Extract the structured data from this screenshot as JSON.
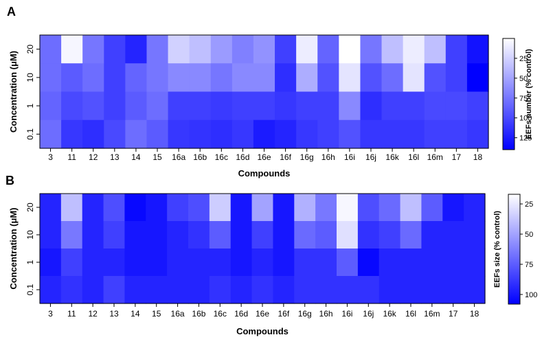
{
  "chart_data": [
    {
      "type": "heatmap",
      "panel": "A",
      "title": "",
      "xlabel": "Compounds",
      "ylabel": "Concentration (μM)",
      "x_categories": [
        "3",
        "11",
        "12",
        "13",
        "14",
        "15",
        "16a",
        "16b",
        "16c",
        "16d",
        "16e",
        "16f",
        "16g",
        "16h",
        "16i",
        "16j",
        "16k",
        "16l",
        "16m",
        "17",
        "18"
      ],
      "y_categories": [
        "20",
        "10",
        "1",
        "0.1"
      ],
      "values": [
        [
          80,
          5,
          75,
          105,
          120,
          75,
          25,
          35,
          55,
          70,
          60,
          105,
          10,
          85,
          0,
          75,
          35,
          10,
          35,
          105,
          130
        ],
        [
          80,
          90,
          80,
          105,
          85,
          75,
          65,
          65,
          75,
          65,
          65,
          115,
          45,
          95,
          15,
          95,
          80,
          15,
          95,
          105,
          140
        ],
        [
          85,
          100,
          95,
          105,
          90,
          80,
          105,
          105,
          108,
          105,
          105,
          110,
          105,
          105,
          65,
          115,
          105,
          105,
          100,
          100,
          105
        ],
        [
          80,
          110,
          115,
          100,
          80,
          90,
          110,
          112,
          115,
          110,
          125,
          120,
          110,
          105,
          95,
          110,
          110,
          110,
          105,
          105,
          110
        ]
      ],
      "colorbar": {
        "label": "EEFs number (% control)",
        "ticks": [
          "25",
          "50",
          "75",
          "100",
          "125"
        ],
        "range": [
          0,
          140
        ]
      },
      "color_low": "#FFFFFF",
      "color_high": "#0000FF"
    },
    {
      "type": "heatmap",
      "panel": "B",
      "title": "",
      "xlabel": "Compounds",
      "ylabel": "Concentration (μM)",
      "x_categories": [
        "3",
        "11",
        "12",
        "13",
        "14",
        "15",
        "16a",
        "16b",
        "16c",
        "16d",
        "16e",
        "16f",
        "16g",
        "16h",
        "16i",
        "16j",
        "16k",
        "16l",
        "16m",
        "17",
        "18"
      ],
      "y_categories": [
        "20",
        "10",
        "1",
        "0.1"
      ],
      "values": [
        [
          95,
          40,
          95,
          80,
          105,
          100,
          85,
          80,
          35,
          100,
          50,
          100,
          45,
          65,
          20,
          80,
          70,
          40,
          75,
          100,
          95
        ],
        [
          95,
          65,
          95,
          85,
          100,
          100,
          95,
          90,
          75,
          100,
          85,
          100,
          70,
          75,
          28,
          90,
          85,
          70,
          95,
          95,
          95
        ],
        [
          100,
          85,
          95,
          95,
          100,
          100,
          95,
          95,
          95,
          100,
          95,
          100,
          90,
          90,
          75,
          105,
          95,
          95,
          95,
          95,
          95
        ],
        [
          95,
          90,
          95,
          85,
          95,
          95,
          95,
          95,
          90,
          95,
          90,
          95,
          90,
          90,
          90,
          90,
          95,
          95,
          95,
          95,
          95
        ]
      ],
      "colorbar": {
        "label": "EEFs size (% control)",
        "ticks": [
          "25",
          "50",
          "75",
          "100"
        ],
        "range": [
          17,
          108
        ]
      },
      "color_low": "#FFFFFF",
      "color_high": "#0000FF"
    }
  ],
  "panels": {
    "a": {
      "letter": "A"
    },
    "b": {
      "letter": "B"
    }
  }
}
